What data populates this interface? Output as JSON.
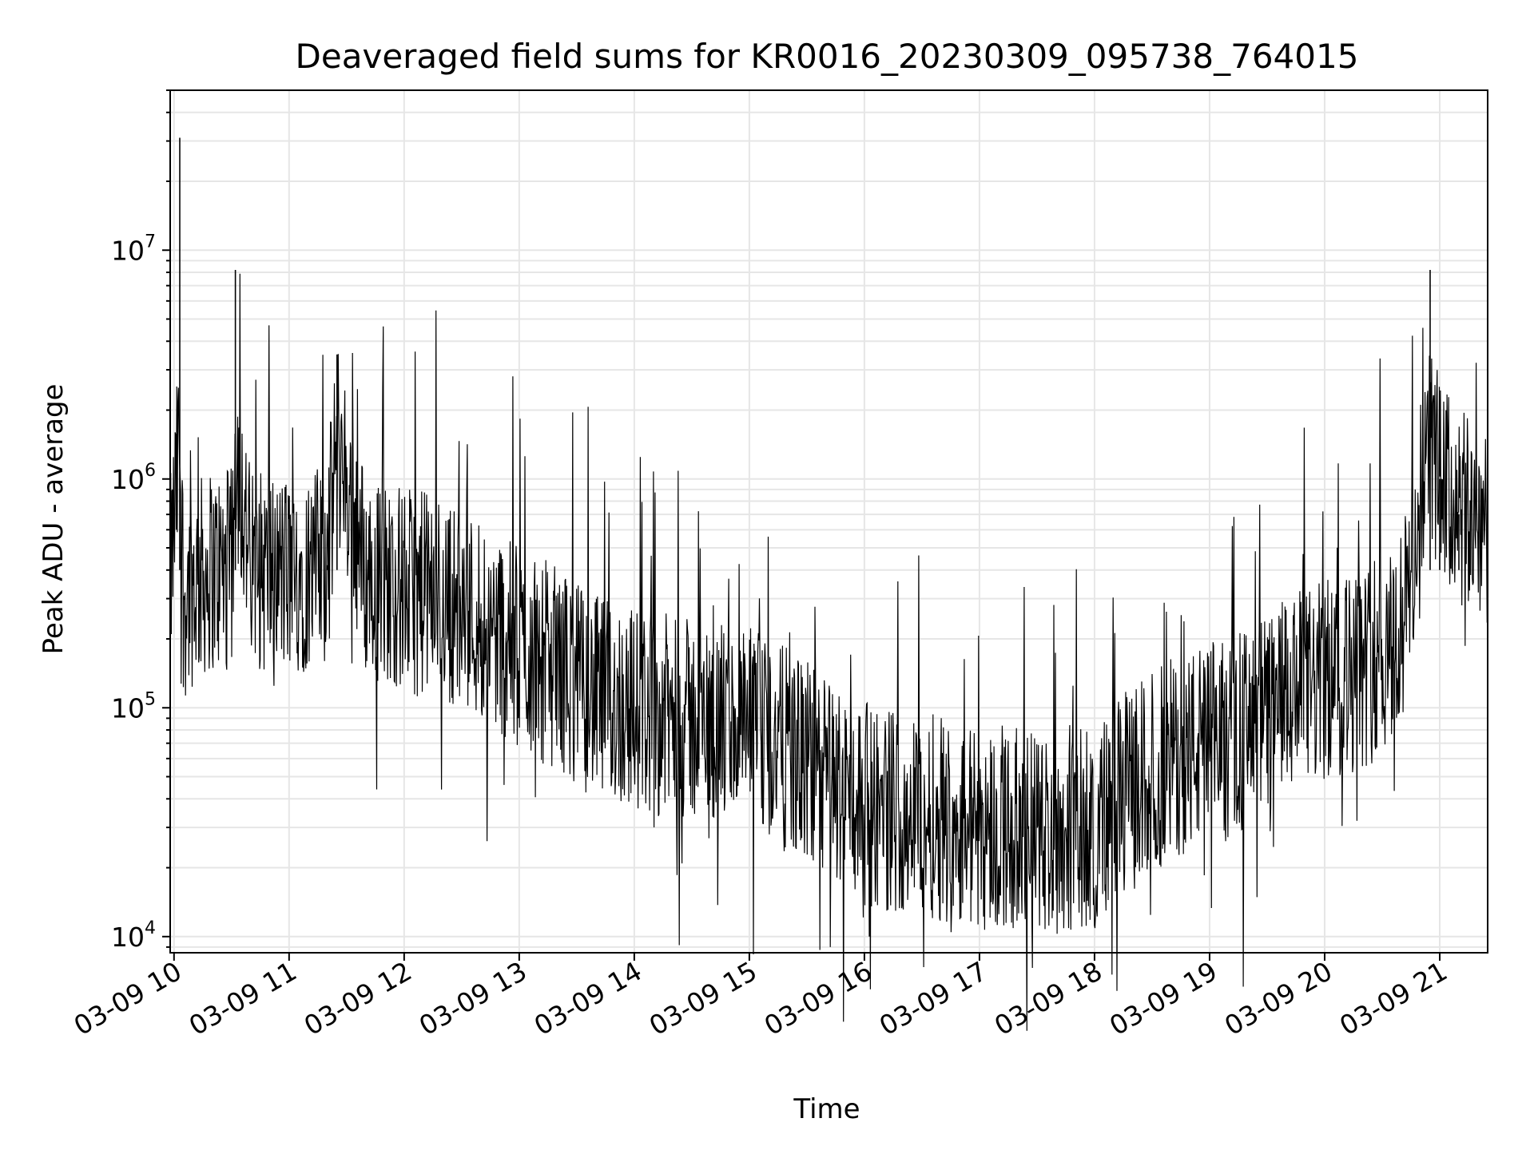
{
  "chart_data": {
    "type": "line",
    "title": "Deaveraged field sums for KR0016_20230309_095738_764015",
    "xlabel": "Time",
    "ylabel": "Peak ADU - average",
    "y_scale": "log",
    "ylim": [
      8500,
      50000000
    ],
    "xlim": [
      "03-09 09:58",
      "03-09 21:25"
    ],
    "grid": true,
    "line_color": "#000000",
    "x_ticks": [
      "03-09 10",
      "03-09 11",
      "03-09 12",
      "03-09 13",
      "03-09 14",
      "03-09 15",
      "03-09 16",
      "03-09 17",
      "03-09 18",
      "03-09 19",
      "03-09 20",
      "03-09 21"
    ],
    "y_ticks": [
      {
        "base": "10",
        "exp": "4",
        "value": 10000
      },
      {
        "base": "10",
        "exp": "5",
        "value": 100000
      },
      {
        "base": "10",
        "exp": "6",
        "value": 1000000
      },
      {
        "base": "10",
        "exp": "7",
        "value": 10000000
      }
    ],
    "series": [
      {
        "x": [
          "03-09 09:58",
          "03-09 10:03",
          "03-09 10:05",
          "03-09 10:10",
          "03-09 10:20",
          "03-09 10:30",
          "03-09 10:32",
          "03-09 10:40",
          "03-09 11:00",
          "03-09 11:20",
          "03-09 11:25",
          "03-09 11:40",
          "03-09 12:00",
          "03-09 12:20",
          "03-09 12:40",
          "03-09 13:00",
          "03-09 13:20",
          "03-09 13:40",
          "03-09 14:00",
          "03-09 14:20",
          "03-09 14:40",
          "03-09 15:00",
          "03-09 15:20",
          "03-09 15:40",
          "03-09 16:00",
          "03-09 16:20",
          "03-09 16:40",
          "03-09 17:00",
          "03-09 17:20",
          "03-09 17:40",
          "03-09 18:00",
          "03-09 18:20",
          "03-09 18:40",
          "03-09 19:00",
          "03-09 19:20",
          "03-09 19:40",
          "03-09 20:00",
          "03-09 20:20",
          "03-09 20:40",
          "03-09 20:55",
          "03-09 21:00",
          "03-09 21:10",
          "03-09 21:25"
        ],
        "values": [
          350000,
          31000000,
          300000,
          350000,
          400000,
          400000,
          8200000,
          400000,
          380000,
          420000,
          3500000,
          380000,
          330000,
          300000,
          250000,
          180000,
          150000,
          110000,
          100000,
          90000,
          85000,
          80000,
          65000,
          50000,
          38000,
          35000,
          33000,
          30000,
          29000,
          28000,
          30000,
          45000,
          60000,
          70000,
          80000,
          110000,
          130000,
          150000,
          200000,
          8200000,
          1000000,
          700000,
          650000
        ]
      }
    ]
  }
}
